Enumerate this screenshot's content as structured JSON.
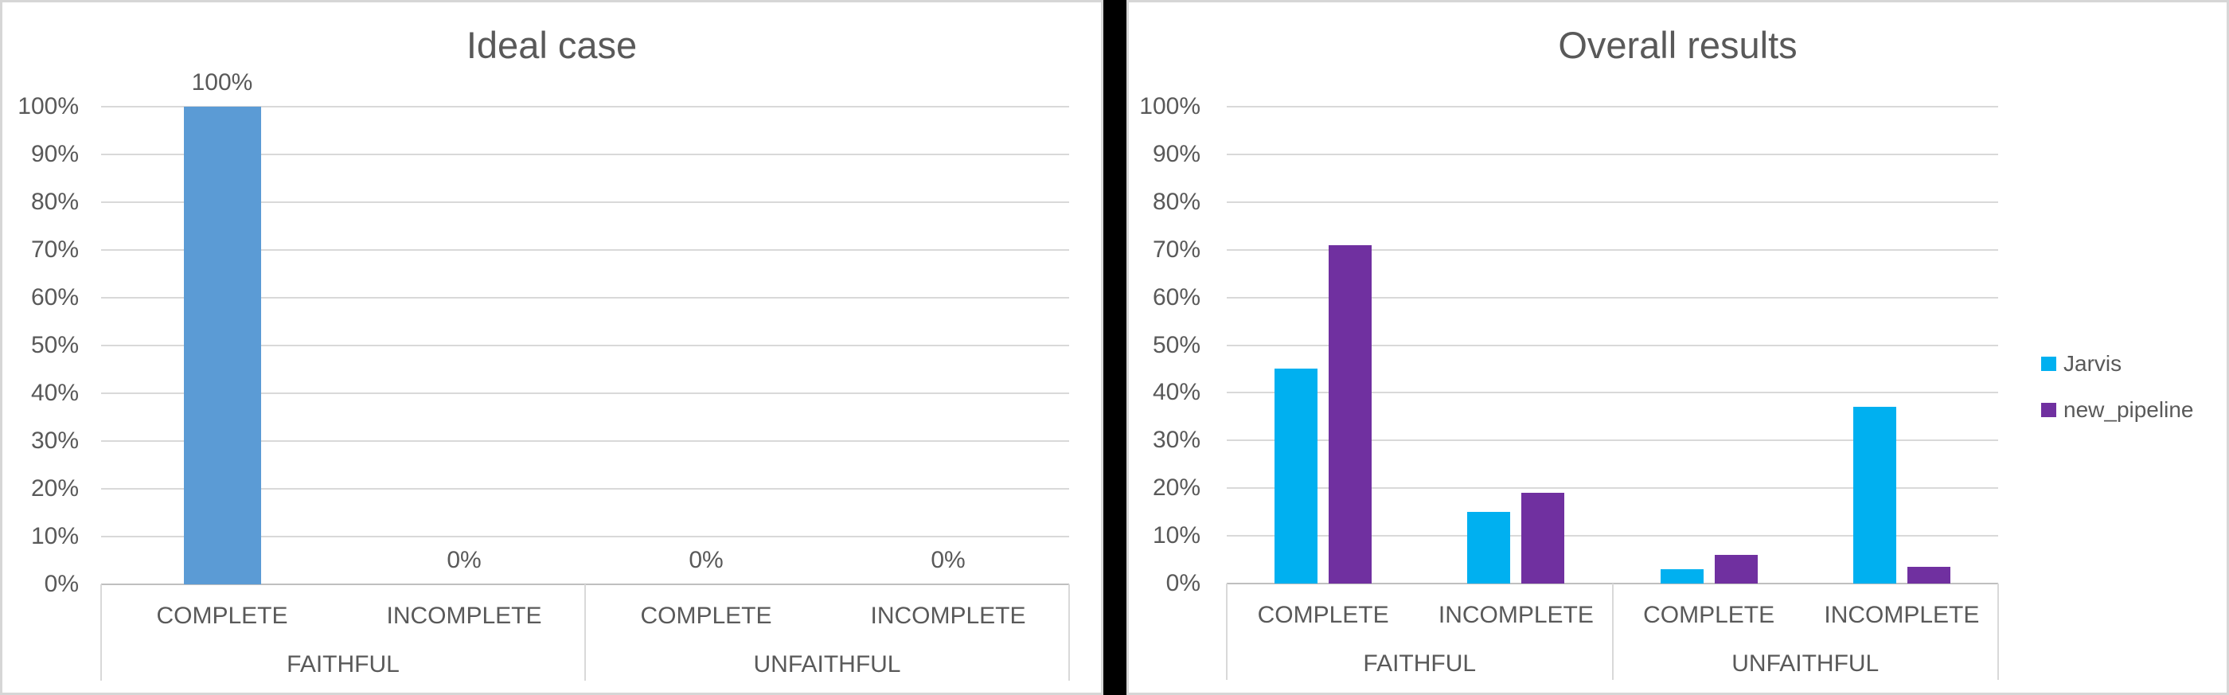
{
  "page": {
    "background": "#ffffff",
    "divider_color": "#000000",
    "panel_border_color": "#d6d6d6",
    "text_color": "#595959",
    "gridline_color": "#d9d9d9",
    "axis_line_color": "#bfbfbf"
  },
  "chart_data": [
    {
      "type": "bar",
      "title": "Ideal case",
      "categories": [
        "COMPLETE",
        "INCOMPLETE",
        "COMPLETE",
        "INCOMPLETE"
      ],
      "category_groups": [
        {
          "label": "FAITHFUL"
        },
        {
          "label": "UNFAITHFUL"
        }
      ],
      "series": [
        {
          "color": "#5b9bd5",
          "values": [
            100,
            0,
            0,
            0
          ]
        }
      ],
      "data_labels": [
        "100%",
        "0%",
        "0%",
        "0%"
      ],
      "y_tick_labels": [
        "0%",
        "10%",
        "20%",
        "30%",
        "40%",
        "50%",
        "60%",
        "70%",
        "80%",
        "90%",
        "100%"
      ],
      "ylim": [
        0,
        100
      ],
      "grid": true,
      "legend": false
    },
    {
      "type": "bar",
      "title": "Overall results",
      "categories": [
        "COMPLETE",
        "INCOMPLETE",
        "COMPLETE",
        "INCOMPLETE"
      ],
      "category_groups": [
        {
          "label": "FAITHFUL"
        },
        {
          "label": "UNFAITHFUL"
        }
      ],
      "series": [
        {
          "name": "Jarvis",
          "color": "#00b0f0",
          "values": [
            45,
            15,
            3,
            37
          ]
        },
        {
          "name": "new_pipeline",
          "color": "#7030a0",
          "values": [
            71,
            19,
            6,
            3.5
          ]
        }
      ],
      "y_tick_labels": [
        "0%",
        "10%",
        "20%",
        "30%",
        "40%",
        "50%",
        "60%",
        "70%",
        "80%",
        "90%",
        "100%"
      ],
      "ylim": [
        0,
        100
      ],
      "grid": true,
      "legend": true,
      "legend_position": "right",
      "legend_entries": [
        "Jarvis",
        "new_pipeline"
      ]
    }
  ]
}
